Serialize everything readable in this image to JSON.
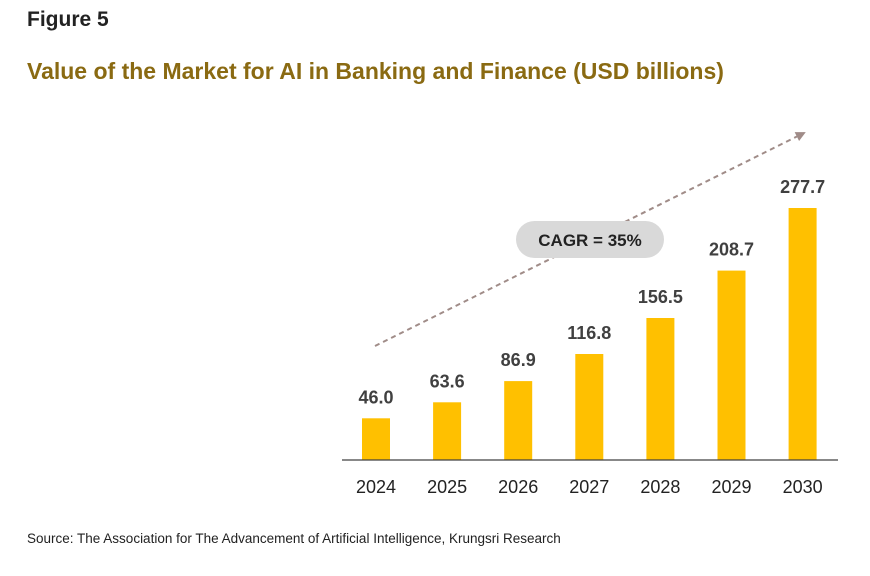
{
  "figure_label": "Figure 5",
  "source": "Source: The Association for The Advancement of Artificial Intelligence, Krungsri Research",
  "colors": {
    "bar": "#FFC000",
    "title": "#8A6A12",
    "trend_arrow": "#A08C88",
    "cagr_bubble": "#D9D9D9"
  },
  "chart_data": {
    "type": "bar",
    "title": "Value of the Market for AI in Banking and Finance (USD billions)",
    "xlabel": "",
    "ylabel": "",
    "categories": [
      "2024",
      "2025",
      "2026",
      "2027",
      "2028",
      "2029",
      "2030"
    ],
    "values": [
      46.0,
      63.6,
      86.9,
      116.8,
      156.5,
      208.7,
      277.7
    ],
    "data_labels": [
      "46.0",
      "63.6",
      "86.9",
      "116.8",
      "156.5",
      "208.7",
      "277.7"
    ],
    "ylim": [
      0,
      300
    ],
    "grid": false,
    "legend": "none",
    "annotations": [
      {
        "text": "CAGR = 35%",
        "type": "trend-arrow"
      }
    ]
  }
}
